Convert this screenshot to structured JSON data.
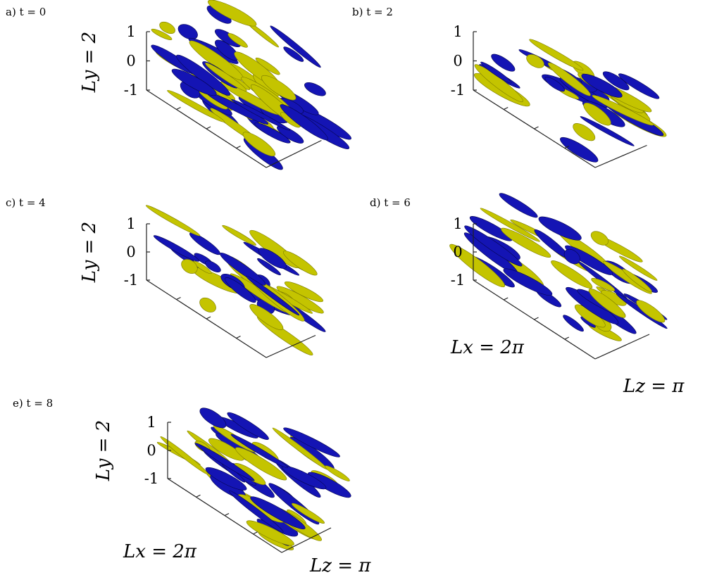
{
  "panels": [
    {
      "label": "a) t = 0",
      "y_label": "Ly = 2",
      "ticks": [
        "1",
        "0",
        "-1"
      ]
    },
    {
      "label": "b) t = 2",
      "ticks": [
        "1",
        "0",
        "-1"
      ]
    },
    {
      "label": "c) t = 4",
      "y_label": "Ly = 2",
      "ticks": [
        "1",
        "0",
        "-1"
      ]
    },
    {
      "label": "d) t = 6",
      "ticks": [
        "1",
        "0",
        "-1"
      ],
      "x_label": "Lx = 2π",
      "z_label": "Lz = π"
    },
    {
      "label": "e) t = 8",
      "y_label": "Ly = 2",
      "ticks": [
        "1",
        "0",
        "-1"
      ],
      "x_label": "Lx = 2π",
      "z_label": "Lz = π"
    }
  ]
}
